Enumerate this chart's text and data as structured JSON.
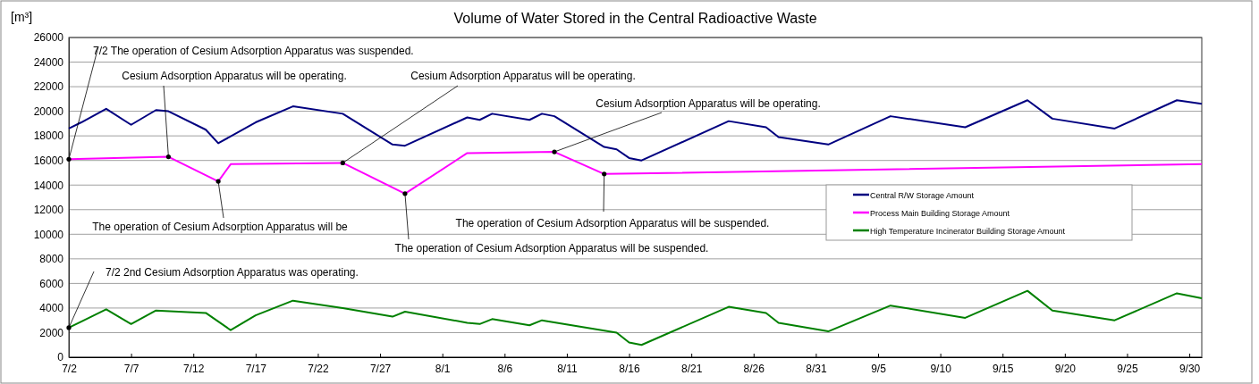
{
  "chart_data": {
    "type": "line",
    "title": "Volume of Water Stored in the Central Radioactive Waste",
    "ylabel": "[m³]",
    "xlim": [
      "--07-02",
      "--10-01"
    ],
    "xticks": [
      {
        "value": "--07-02",
        "label": "7/2"
      },
      {
        "value": "--07-07",
        "label": "7/7"
      },
      {
        "value": "--07-12",
        "label": "7/12"
      },
      {
        "value": "--07-17",
        "label": "7/17"
      },
      {
        "value": "--07-22",
        "label": "7/22"
      },
      {
        "value": "--07-27",
        "label": "7/27"
      },
      {
        "value": "--08-01",
        "label": "8/1"
      },
      {
        "value": "--08-06",
        "label": "8/6"
      },
      {
        "value": "--08-11",
        "label": "8/11"
      },
      {
        "value": "--08-16",
        "label": "8/16"
      },
      {
        "value": "--08-21",
        "label": "8/21"
      },
      {
        "value": "--08-26",
        "label": "8/26"
      },
      {
        "value": "--08-31",
        "label": "8/31"
      },
      {
        "value": "--09-05",
        "label": "9/5"
      },
      {
        "value": "--09-10",
        "label": "9/10"
      },
      {
        "value": "--09-15",
        "label": "9/15"
      },
      {
        "value": "--09-20",
        "label": "9/20"
      },
      {
        "value": "--09-25",
        "label": "9/25"
      },
      {
        "value": "--09-30",
        "label": "9/30"
      }
    ],
    "ylim": [
      0,
      26000
    ],
    "yticks": [
      0,
      2000,
      4000,
      6000,
      8000,
      10000,
      12000,
      14000,
      16000,
      18000,
      20000,
      22000,
      24000,
      26000
    ],
    "grid": "y",
    "legend": "right",
    "marker": "none",
    "line_style": "solid",
    "series": [
      {
        "name": "Central R/W Storage Amount",
        "color": "#000080",
        "x": [
          "--07-02",
          "--07-03",
          "--07-05",
          "--07-07",
          "--07-09",
          "--07-10",
          "--07-13",
          "--07-14",
          "--07-17",
          "--07-20",
          "--07-24",
          "--07-28",
          "--07-29",
          "--08-03",
          "--08-04",
          "--08-05",
          "--08-08",
          "--08-09",
          "--08-10",
          "--08-14",
          "--08-15",
          "--08-16",
          "--08-17",
          "--08-24",
          "--08-27",
          "--08-28",
          "--09-01",
          "--09-06",
          "--09-12",
          "--09-17",
          "--09-19",
          "--09-24",
          "--09-29",
          "--10-01"
        ],
        "values": [
          18600,
          19100,
          20200,
          18900,
          20100,
          20000,
          18500,
          17400,
          19100,
          20400,
          19800,
          17300,
          17200,
          19500,
          19300,
          19800,
          19300,
          19800,
          19600,
          17100,
          16900,
          16200,
          16000,
          19200,
          18700,
          17900,
          17300,
          19600,
          18700,
          20900,
          19400,
          18600,
          20900,
          20600
        ]
      },
      {
        "name": "Process Main Building Storage Amount",
        "color": "#ff00ff",
        "x": [
          "--07-02",
          "--07-10",
          "--07-14",
          "--07-15",
          "--07-24",
          "--07-29",
          "--08-03",
          "--08-10",
          "--08-14",
          "--10-01"
        ],
        "values": [
          16100,
          16300,
          14300,
          15700,
          15800,
          13300,
          16600,
          16700,
          14900,
          15700
        ]
      },
      {
        "name": "High Temperature Incinerator Building Storage Amount",
        "color": "#008000",
        "x": [
          "--07-02",
          "--07-03",
          "--07-05",
          "--07-07",
          "--07-09",
          "--07-13",
          "--07-15",
          "--07-17",
          "--07-20",
          "--07-24",
          "--07-28",
          "--07-29",
          "--08-03",
          "--08-04",
          "--08-05",
          "--08-08",
          "--08-09",
          "--08-15",
          "--08-16",
          "--08-17",
          "--08-24",
          "--08-27",
          "--08-28",
          "--09-01",
          "--09-06",
          "--09-12",
          "--09-17",
          "--09-19",
          "--09-24",
          "--09-29",
          "--10-01"
        ],
        "values": [
          2400,
          2900,
          3900,
          2700,
          3800,
          3600,
          2200,
          3400,
          4600,
          4000,
          3300,
          3700,
          2800,
          2700,
          3100,
          2600,
          3000,
          2000,
          1200,
          1000,
          4100,
          3600,
          2800,
          2100,
          4200,
          3200,
          5400,
          3800,
          3000,
          5200,
          4800
        ]
      }
    ],
    "annotations": [
      {
        "text": "7/2 The operation of Cesium Adsorption Apparatus was suspended.",
        "x": "--07-02",
        "y": 16100
      },
      {
        "text": "Cesium Adsorption Apparatus will be operating.",
        "x": "--07-10",
        "y": 16300
      },
      {
        "text": "Cesium Adsorption Apparatus will be operating.",
        "x": "--07-24",
        "y": 15800
      },
      {
        "text": "Cesium Adsorption Apparatus will be operating.",
        "x": "--08-10",
        "y": 16700
      },
      {
        "text": "The operation of Cesium Adsorption Apparatus will be",
        "x": "--07-14",
        "y": 14300
      },
      {
        "text": "The operation of Cesium Adsorption Apparatus will be suspended.",
        "x": "--07-29",
        "y": 13300
      },
      {
        "text": "The operation of Cesium Adsorption Apparatus will be suspended.",
        "x": "--08-14",
        "y": 14900
      },
      {
        "text": "7/2  2nd Cesium Adsorption Apparatus was operating.",
        "x": "--07-02",
        "y": 2400
      }
    ]
  }
}
